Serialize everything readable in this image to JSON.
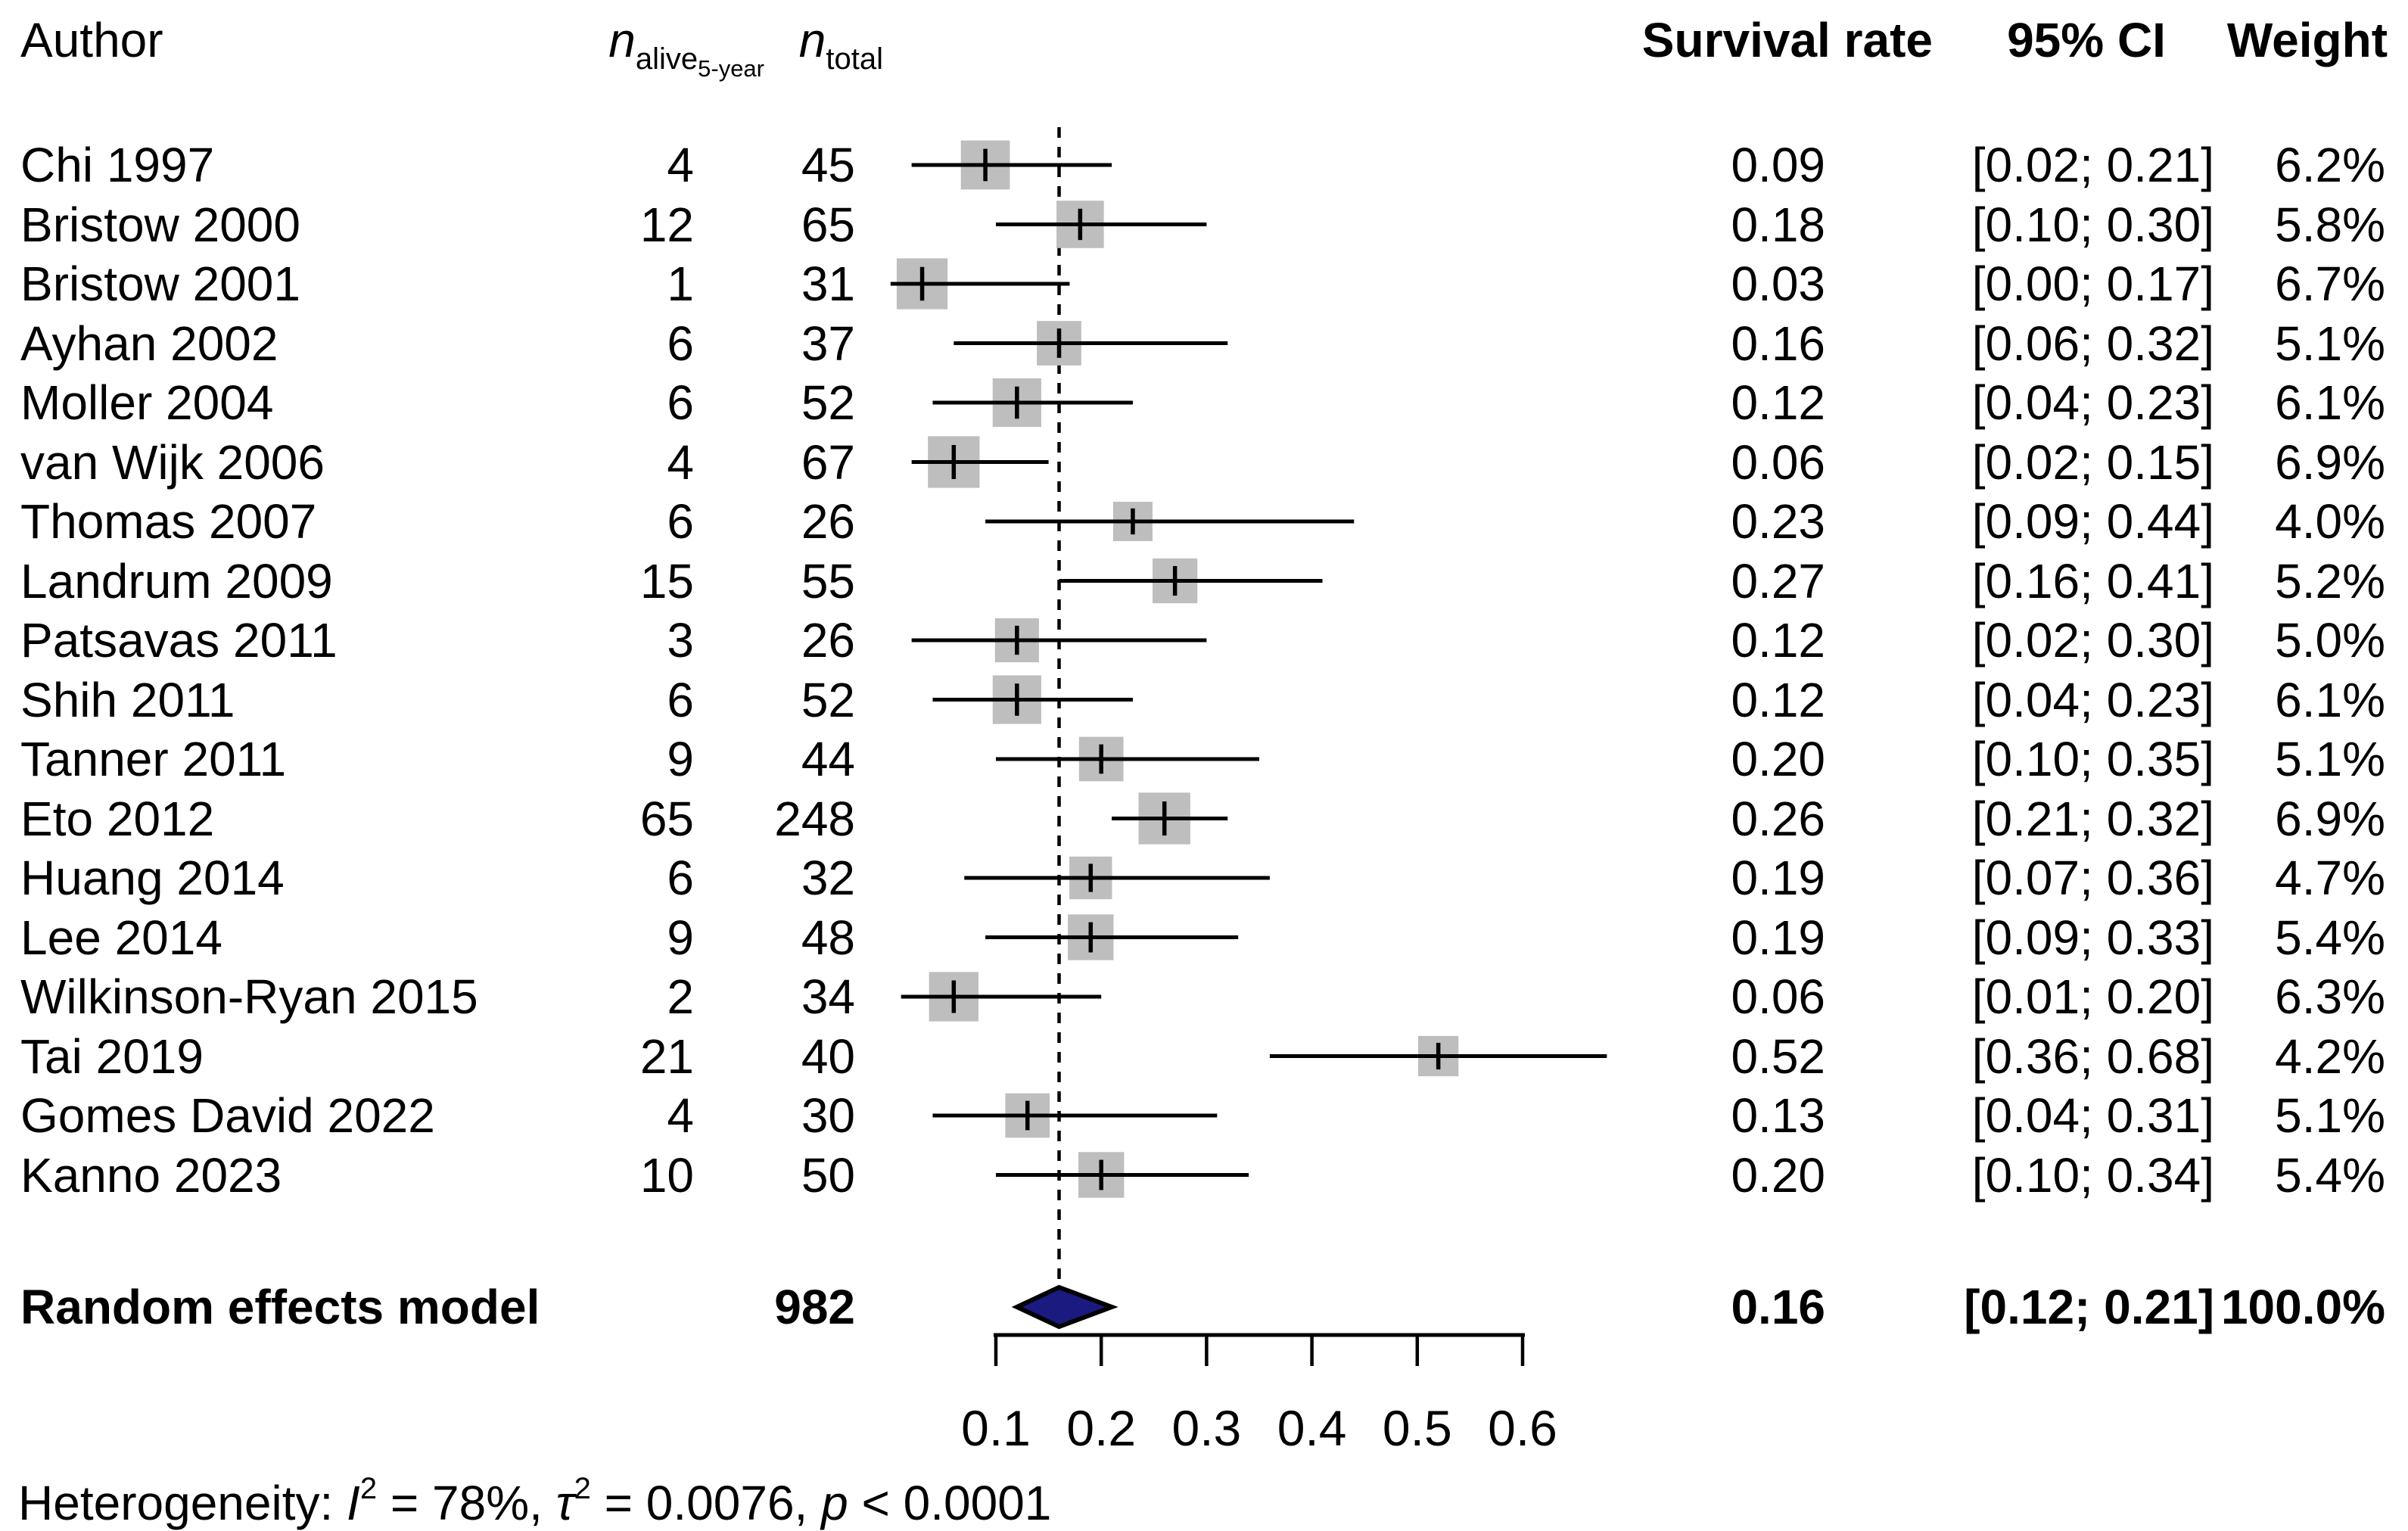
{
  "columns": {
    "author": "Author",
    "n_alive_prefix": "n",
    "n_alive_sub": "alive",
    "n_alive_subsub": "5-year",
    "n_total_prefix": "n",
    "n_total_sub": "total",
    "survival_rate": "Survival rate",
    "ci": "95% CI",
    "weight": "Weight"
  },
  "chart_data": {
    "type": "scatter",
    "subtype": "forest-plot-meta-analysis",
    "title": "",
    "xlabel": "",
    "xlim": [
      0.0,
      0.7
    ],
    "x_tick_values": [
      0.1,
      0.2,
      0.3,
      0.4,
      0.5,
      0.6
    ],
    "x_tick_labels": [
      "0.1",
      "0.2",
      "0.3",
      "0.4",
      "0.5",
      "0.6"
    ],
    "grid": "off",
    "pooled_reference_line_x": 0.16,
    "studies": [
      {
        "author": "Chi 1997",
        "n_alive": "4",
        "n_total": "45",
        "rate": 0.09,
        "rate_text": "0.09",
        "ci_low": 0.02,
        "ci_high": 0.21,
        "ci_text": "[0.02; 0.21]",
        "weight": 6.2,
        "weight_text": "6.2%"
      },
      {
        "author": "Bristow 2000",
        "n_alive": "12",
        "n_total": "65",
        "rate": 0.18,
        "rate_text": "0.18",
        "ci_low": 0.1,
        "ci_high": 0.3,
        "ci_text": "[0.10; 0.30]",
        "weight": 5.8,
        "weight_text": "5.8%"
      },
      {
        "author": "Bristow 2001",
        "n_alive": "1",
        "n_total": "31",
        "rate": 0.03,
        "rate_text": "0.03",
        "ci_low": 0.0,
        "ci_high": 0.17,
        "ci_text": "[0.00; 0.17]",
        "weight": 6.7,
        "weight_text": "6.7%"
      },
      {
        "author": "Ayhan 2002",
        "n_alive": "6",
        "n_total": "37",
        "rate": 0.16,
        "rate_text": "0.16",
        "ci_low": 0.06,
        "ci_high": 0.32,
        "ci_text": "[0.06; 0.32]",
        "weight": 5.1,
        "weight_text": "5.1%"
      },
      {
        "author": "Moller 2004",
        "n_alive": "6",
        "n_total": "52",
        "rate": 0.12,
        "rate_text": "0.12",
        "ci_low": 0.04,
        "ci_high": 0.23,
        "ci_text": "[0.04; 0.23]",
        "weight": 6.1,
        "weight_text": "6.1%"
      },
      {
        "author": "van Wijk 2006",
        "n_alive": "4",
        "n_total": "67",
        "rate": 0.06,
        "rate_text": "0.06",
        "ci_low": 0.02,
        "ci_high": 0.15,
        "ci_text": "[0.02; 0.15]",
        "weight": 6.9,
        "weight_text": "6.9%"
      },
      {
        "author": "Thomas 2007",
        "n_alive": "6",
        "n_total": "26",
        "rate": 0.23,
        "rate_text": "0.23",
        "ci_low": 0.09,
        "ci_high": 0.44,
        "ci_text": "[0.09; 0.44]",
        "weight": 4.0,
        "weight_text": "4.0%"
      },
      {
        "author": "Landrum 2009",
        "n_alive": "15",
        "n_total": "55",
        "rate": 0.27,
        "rate_text": "0.27",
        "ci_low": 0.16,
        "ci_high": 0.41,
        "ci_text": "[0.16; 0.41]",
        "weight": 5.2,
        "weight_text": "5.2%"
      },
      {
        "author": "Patsavas 2011",
        "n_alive": "3",
        "n_total": "26",
        "rate": 0.12,
        "rate_text": "0.12",
        "ci_low": 0.02,
        "ci_high": 0.3,
        "ci_text": "[0.02; 0.30]",
        "weight": 5.0,
        "weight_text": "5.0%"
      },
      {
        "author": "Shih 2011",
        "n_alive": "6",
        "n_total": "52",
        "rate": 0.12,
        "rate_text": "0.12",
        "ci_low": 0.04,
        "ci_high": 0.23,
        "ci_text": "[0.04; 0.23]",
        "weight": 6.1,
        "weight_text": "6.1%"
      },
      {
        "author": "Tanner 2011",
        "n_alive": "9",
        "n_total": "44",
        "rate": 0.2,
        "rate_text": "0.20",
        "ci_low": 0.1,
        "ci_high": 0.35,
        "ci_text": "[0.10; 0.35]",
        "weight": 5.1,
        "weight_text": "5.1%"
      },
      {
        "author": "Eto 2012",
        "n_alive": "65",
        "n_total": "248",
        "rate": 0.26,
        "rate_text": "0.26",
        "ci_low": 0.21,
        "ci_high": 0.32,
        "ci_text": "[0.21; 0.32]",
        "weight": 6.9,
        "weight_text": "6.9%"
      },
      {
        "author": "Huang 2014",
        "n_alive": "6",
        "n_total": "32",
        "rate": 0.19,
        "rate_text": "0.19",
        "ci_low": 0.07,
        "ci_high": 0.36,
        "ci_text": "[0.07; 0.36]",
        "weight": 4.7,
        "weight_text": "4.7%"
      },
      {
        "author": "Lee 2014",
        "n_alive": "9",
        "n_total": "48",
        "rate": 0.19,
        "rate_text": "0.19",
        "ci_low": 0.09,
        "ci_high": 0.33,
        "ci_text": "[0.09; 0.33]",
        "weight": 5.4,
        "weight_text": "5.4%"
      },
      {
        "author": "Wilkinson-Ryan 2015",
        "n_alive": "2",
        "n_total": "34",
        "rate": 0.06,
        "rate_text": "0.06",
        "ci_low": 0.01,
        "ci_high": 0.2,
        "ci_text": "[0.01; 0.20]",
        "weight": 6.3,
        "weight_text": "6.3%"
      },
      {
        "author": "Tai 2019",
        "n_alive": "21",
        "n_total": "40",
        "rate": 0.52,
        "rate_text": "0.52",
        "ci_low": 0.36,
        "ci_high": 0.68,
        "ci_text": "[0.36; 0.68]",
        "weight": 4.2,
        "weight_text": "4.2%"
      },
      {
        "author": "Gomes David 2022",
        "n_alive": "4",
        "n_total": "30",
        "rate": 0.13,
        "rate_text": "0.13",
        "ci_low": 0.04,
        "ci_high": 0.31,
        "ci_text": "[0.04; 0.31]",
        "weight": 5.1,
        "weight_text": "5.1%"
      },
      {
        "author": "Kanno 2023",
        "n_alive": "10",
        "n_total": "50",
        "rate": 0.2,
        "rate_text": "0.20",
        "ci_low": 0.1,
        "ci_high": 0.34,
        "ci_text": "[0.10; 0.34]",
        "weight": 5.4,
        "weight_text": "5.4%"
      }
    ],
    "summary": {
      "label": "Random effects model",
      "n_total": "982",
      "rate": 0.16,
      "rate_text": "0.16",
      "ci_low": 0.12,
      "ci_high": 0.21,
      "ci_text": "[0.12; 0.21]",
      "weight_text": "100.0%"
    }
  },
  "heterogeneity": {
    "prefix": "Heterogeneity: ",
    "i_symbol": "I",
    "i_sup": "2",
    "mid1": " = 78%, ",
    "tau_symbol": "τ",
    "tau_sup": "2",
    "mid2": " = 0.0076, ",
    "p_symbol": "p",
    "tail": " < 0.0001"
  },
  "colors": {
    "text": "#000000",
    "square": "#bebebe",
    "ci_line": "#000000",
    "diamond_fill": "#1a1a80",
    "diamond_border": "#000000",
    "axis": "#000000"
  }
}
